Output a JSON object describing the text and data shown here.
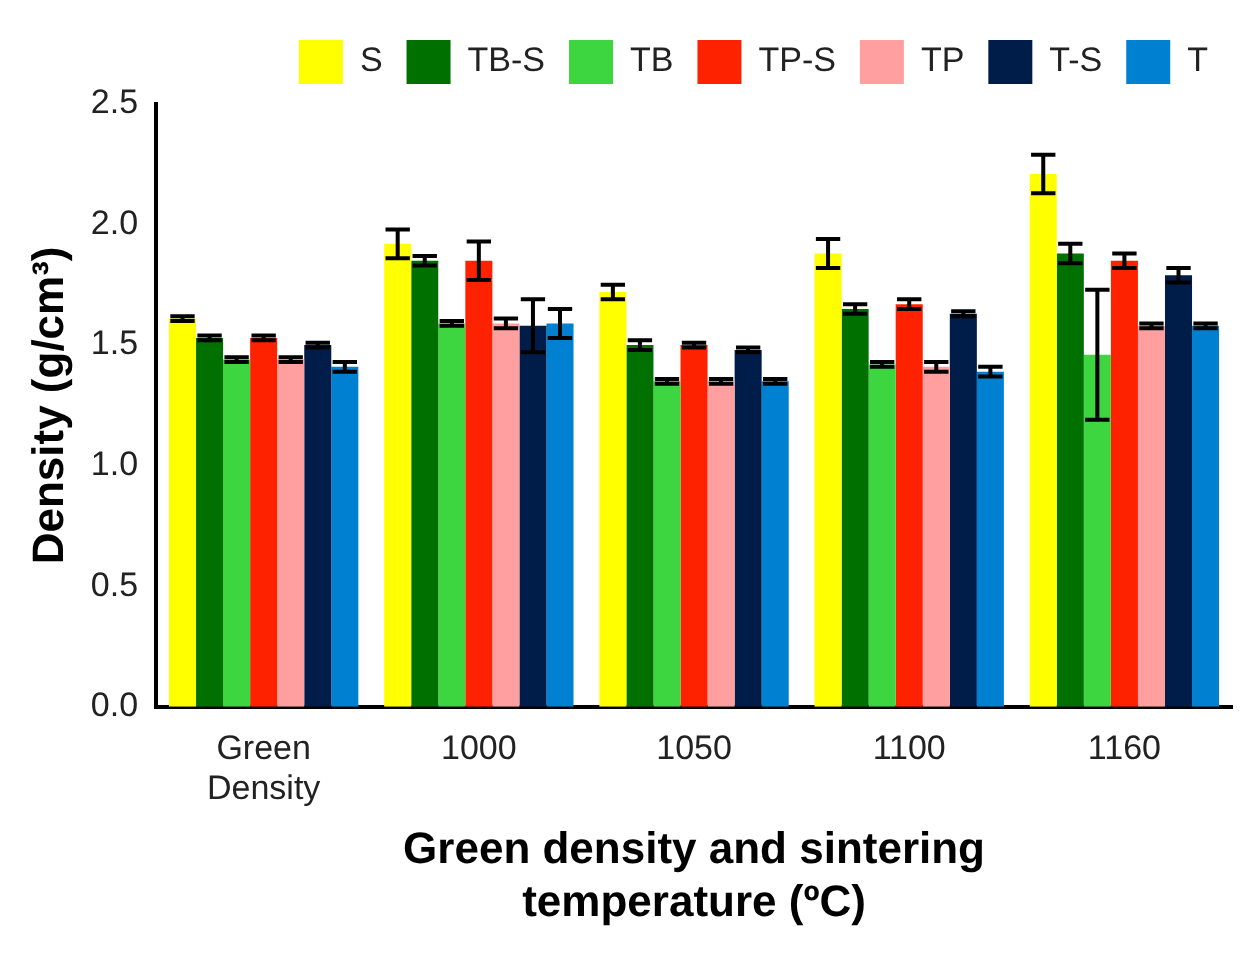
{
  "chart_data": {
    "type": "bar",
    "xlabel": "Green density and sintering temperature (ºC)",
    "ylabel": "Density (g/cm³)",
    "categories": [
      "Green Density",
      "1000",
      "1050",
      "1100",
      "1160"
    ],
    "ylim": [
      0,
      2.5
    ],
    "yticks": [
      {
        "value": 0,
        "label": "0.0"
      },
      {
        "value": 0.5,
        "label": "0.5"
      },
      {
        "value": 1,
        "label": "1.0"
      },
      {
        "value": 1.5,
        "label": "1.5"
      },
      {
        "value": 2,
        "label": "2.0"
      },
      {
        "value": 2.5,
        "label": "2.5"
      }
    ],
    "grid": false,
    "legend": "top",
    "series": [
      {
        "name": "S",
        "color": "#ffff00",
        "values": [
          1.61,
          1.92,
          1.72,
          1.88,
          2.21
        ],
        "errors": [
          0.01,
          0.06,
          0.03,
          0.06,
          0.08
        ]
      },
      {
        "name": "TB-S",
        "color": "#007000",
        "values": [
          1.53,
          1.85,
          1.5,
          1.65,
          1.88
        ],
        "errors": [
          0.01,
          0.02,
          0.02,
          0.02,
          0.04
        ]
      },
      {
        "name": "TB",
        "color": "#3dd640",
        "values": [
          1.44,
          1.59,
          1.35,
          1.42,
          1.46
        ],
        "errors": [
          0.01,
          0.01,
          0.01,
          0.01,
          0.27
        ]
      },
      {
        "name": "TP-S",
        "color": "#ff2200",
        "values": [
          1.53,
          1.85,
          1.5,
          1.67,
          1.85
        ],
        "errors": [
          0.01,
          0.08,
          0.01,
          0.02,
          0.03
        ]
      },
      {
        "name": "TP",
        "color": "#ff9f9f",
        "values": [
          1.44,
          1.59,
          1.35,
          1.41,
          1.58
        ],
        "errors": [
          0.01,
          0.02,
          0.01,
          0.02,
          0.01
        ]
      },
      {
        "name": "T-S",
        "color": "#001c48",
        "values": [
          1.5,
          1.58,
          1.48,
          1.63,
          1.79
        ],
        "errors": [
          0.01,
          0.11,
          0.01,
          0.01,
          0.03
        ]
      },
      {
        "name": "T",
        "color": "#0080d0",
        "values": [
          1.41,
          1.59,
          1.35,
          1.39,
          1.58
        ],
        "errors": [
          0.02,
          0.06,
          0.01,
          0.02,
          0.01
        ]
      }
    ]
  }
}
